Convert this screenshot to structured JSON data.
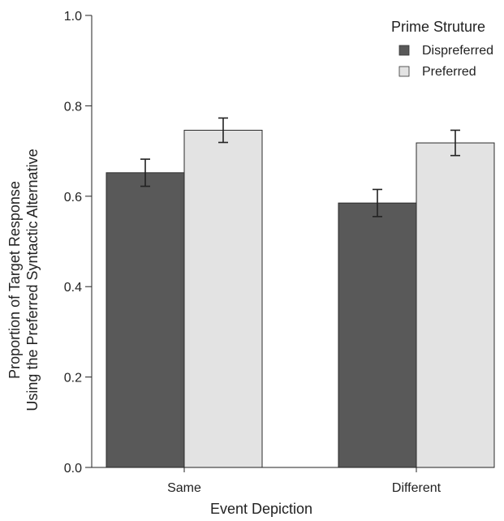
{
  "chart_data": {
    "type": "bar",
    "title": "",
    "xlabel": "Event Depiction",
    "ylabel_lines": [
      "Proportion of Target Response",
      "Using the Preferred Syntactic Alternative"
    ],
    "categories": [
      "Same",
      "Different"
    ],
    "ylim": [
      0,
      1.0
    ],
    "yticks": [
      "0.0",
      "0.2",
      "0.4",
      "0.6",
      "0.8",
      "1.0"
    ],
    "ytick_values": [
      0,
      0.2,
      0.4,
      0.6,
      0.8,
      1.0
    ],
    "grid": false,
    "legend": {
      "title": "Prime Struture",
      "position": "top-right"
    },
    "series": [
      {
        "name": "Dispreferred",
        "color": "#595959",
        "values": [
          0.652,
          0.585
        ],
        "errors": [
          0.03,
          0.03
        ]
      },
      {
        "name": "Preferred",
        "color": "#e3e3e3",
        "values": [
          0.746,
          0.718
        ],
        "errors": [
          0.027,
          0.028
        ]
      }
    ]
  }
}
